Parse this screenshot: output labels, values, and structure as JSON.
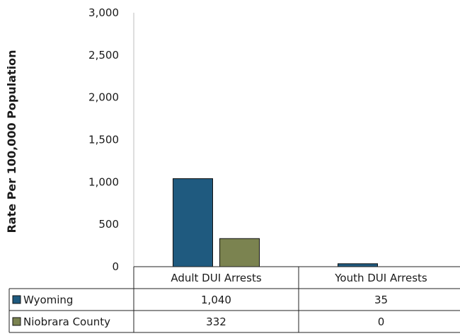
{
  "chart_data": {
    "type": "bar",
    "title": "",
    "xlabel": "",
    "ylabel": "Rate Per 100,000 Population",
    "ylim": [
      0,
      3000
    ],
    "yticks": [
      0,
      500,
      1000,
      1500,
      2000,
      2500,
      3000
    ],
    "ytick_labels": [
      "0",
      "500",
      "1,000",
      "1,500",
      "2,000",
      "2,500",
      "3,000"
    ],
    "categories": [
      "Adult DUI Arrests",
      "Youth DUI Arrests"
    ],
    "series": [
      {
        "name": "Wyoming",
        "values": [
          1040,
          35
        ],
        "labels": [
          "1,040",
          "35"
        ],
        "color": "#1f5a7f"
      },
      {
        "name": "Niobrara County",
        "values": [
          332,
          0
        ],
        "labels": [
          "332",
          "0"
        ],
        "color": "#7b8350"
      }
    ],
    "grid": false,
    "legend": "data-table"
  }
}
